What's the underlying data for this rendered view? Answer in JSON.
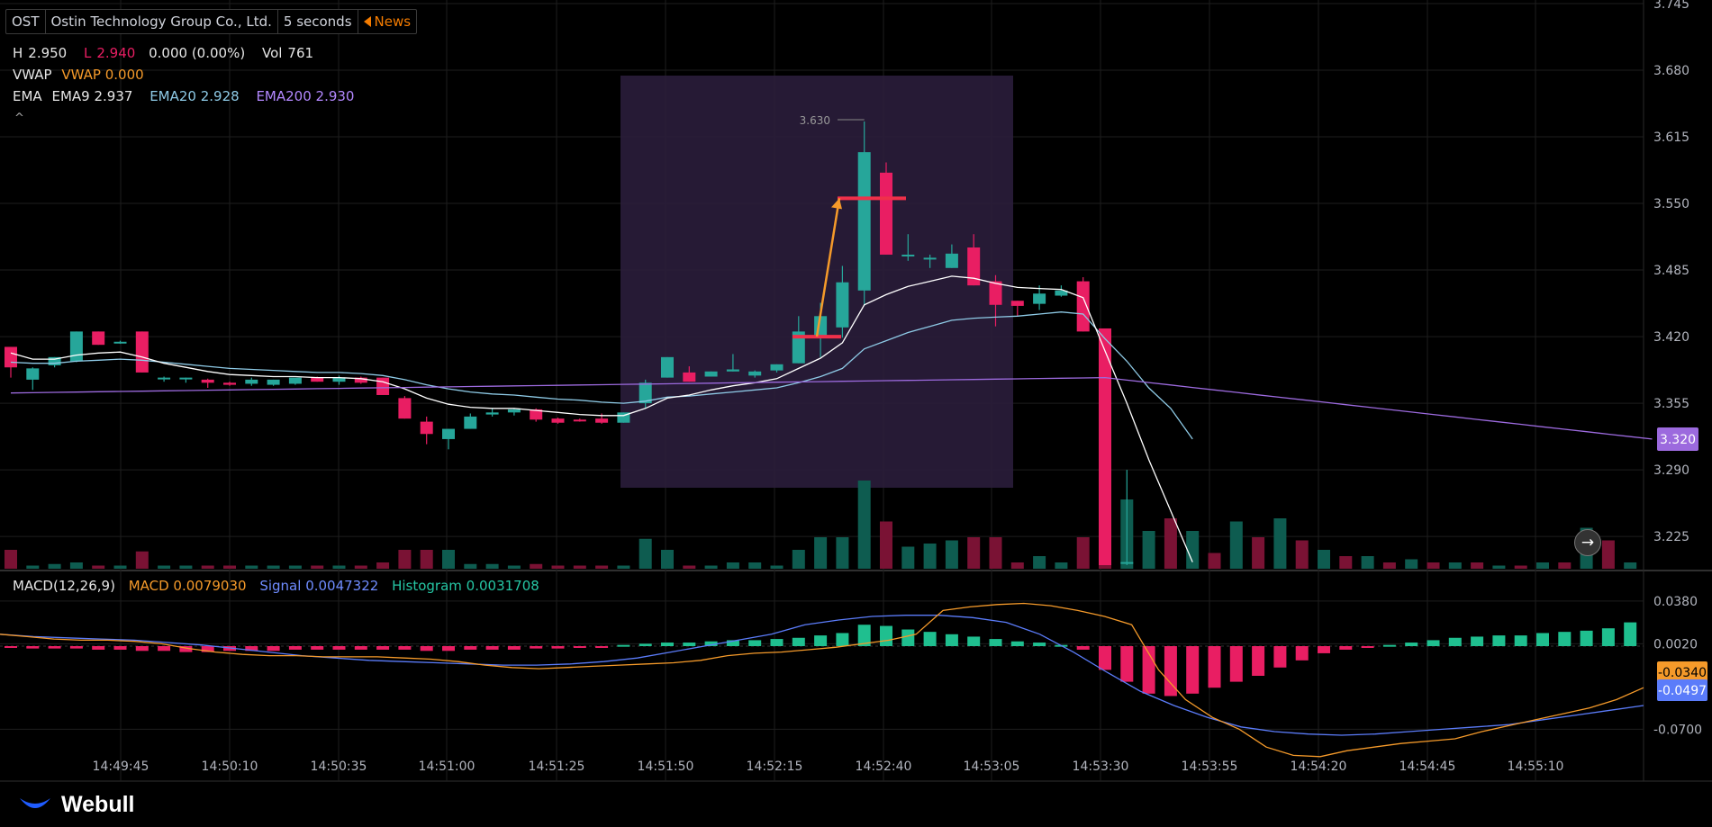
{
  "ticker": {
    "symbol": "OST",
    "name": "Ostin Technology Group Co., Ltd.",
    "interval": "5 seconds",
    "news_label": "News"
  },
  "ohlc": {
    "h_label": "H",
    "h_value": "2.950",
    "l_label": "L",
    "l_value": "2.940",
    "change": "0.000 (0.00%)",
    "vol_label": "Vol",
    "vol_value": "761"
  },
  "vwap": {
    "label": "VWAP",
    "value_text": "VWAP 0.000"
  },
  "ema": {
    "label": "EMA",
    "ema9_text": "EMA9 2.937",
    "ema20_text": "EMA20 2.928",
    "ema200_text": "EMA200 2.930"
  },
  "collapse_glyph": "^",
  "macd_header": {
    "label": "MACD(12,26,9)",
    "macd_text": "MACD 0.0079030",
    "signal_text": "Signal 0.0047322",
    "hist_text": "Histogram 0.0031708"
  },
  "brand": "Webull",
  "colors": {
    "up": "#26a69a",
    "down": "#e91e63",
    "ema9": "#ffffff",
    "ema20": "#8ecae6",
    "ema200": "#9c6ade",
    "macd": "#f59a2a",
    "signal": "#5b7cfa",
    "box": "#2a1d3b",
    "arrow": "#f59a2a",
    "hline": "#f0304a"
  },
  "chart_data": [
    {
      "type": "candlestick",
      "y_ticks": [
        "3.745",
        "3.680",
        "3.615",
        "3.550",
        "3.485",
        "3.420",
        "3.355",
        "3.290",
        "3.225"
      ],
      "ylim": [
        3.197,
        3.745
      ],
      "x_ticks": [
        "14:49:45",
        "14:50:10",
        "14:50:35",
        "14:51:00",
        "14:51:25",
        "14:51:50",
        "14:52:15",
        "14:52:40",
        "14:53:05",
        "14:53:30",
        "14:53:55",
        "14:54:20",
        "14:54:45",
        "14:55:10"
      ],
      "candles": [
        [
          3.41,
          3.41,
          3.38,
          3.39
        ],
        [
          3.378,
          3.39,
          3.368,
          3.389
        ],
        [
          3.392,
          3.4,
          3.39,
          3.4
        ],
        [
          3.396,
          3.425,
          3.395,
          3.425
        ],
        [
          3.425,
          3.425,
          3.412,
          3.412
        ],
        [
          3.414,
          3.416,
          3.413,
          3.415
        ],
        [
          3.425,
          3.425,
          3.385,
          3.385
        ],
        [
          3.38,
          3.381,
          3.376,
          3.38
        ],
        [
          3.38,
          3.38,
          3.375,
          3.38
        ],
        [
          3.378,
          3.379,
          3.37,
          3.375
        ],
        [
          3.375,
          3.376,
          3.372,
          3.373
        ],
        [
          3.374,
          3.38,
          3.372,
          3.378
        ],
        [
          3.373,
          3.378,
          3.372,
          3.378
        ],
        [
          3.374,
          3.378,
          3.373,
          3.38
        ],
        [
          3.38,
          3.381,
          3.376,
          3.376
        ],
        [
          3.376,
          3.382,
          3.373,
          3.38
        ],
        [
          3.38,
          3.381,
          3.374,
          3.375
        ],
        [
          3.38,
          3.38,
          3.363,
          3.363
        ],
        [
          3.36,
          3.362,
          3.34,
          3.34
        ],
        [
          3.337,
          3.342,
          3.315,
          3.325
        ],
        [
          3.32,
          3.33,
          3.31,
          3.33
        ],
        [
          3.33,
          3.345,
          3.33,
          3.342
        ],
        [
          3.344,
          3.35,
          3.342,
          3.346
        ],
        [
          3.346,
          3.35,
          3.343,
          3.349
        ],
        [
          3.349,
          3.35,
          3.337,
          3.339
        ],
        [
          3.34,
          3.341,
          3.335,
          3.336
        ],
        [
          3.339,
          3.34,
          3.337,
          3.338
        ],
        [
          3.34,
          3.345,
          3.335,
          3.336
        ],
        [
          3.336,
          3.346,
          3.336,
          3.346
        ],
        [
          3.355,
          3.378,
          3.35,
          3.375
        ],
        [
          3.38,
          3.4,
          3.38,
          3.4
        ],
        [
          3.385,
          3.391,
          3.376,
          3.376
        ],
        [
          3.381,
          3.386,
          3.381,
          3.386
        ],
        [
          3.386,
          3.403,
          3.386,
          3.388
        ],
        [
          3.382,
          3.387,
          3.38,
          3.386
        ],
        [
          3.387,
          3.393,
          3.385,
          3.393
        ],
        [
          3.394,
          3.44,
          3.394,
          3.425
        ],
        [
          3.42,
          3.453,
          3.4,
          3.44
        ],
        [
          3.429,
          3.489,
          3.419,
          3.473
        ],
        [
          3.465,
          3.63,
          3.45,
          3.6
        ],
        [
          3.58,
          3.59,
          3.5,
          3.5
        ],
        [
          3.5,
          3.52,
          3.494,
          3.5
        ],
        [
          3.497,
          3.5,
          3.487,
          3.497
        ],
        [
          3.487,
          3.51,
          3.487,
          3.501
        ],
        [
          3.507,
          3.52,
          3.47,
          3.47
        ],
        [
          3.474,
          3.48,
          3.43,
          3.451
        ],
        [
          3.455,
          3.455,
          3.44,
          3.45
        ],
        [
          3.452,
          3.47,
          3.446,
          3.462
        ],
        [
          3.46,
          3.47,
          3.459,
          3.465
        ],
        [
          3.474,
          3.478,
          3.425,
          3.425
        ],
        [
          3.428,
          3.428,
          3.197,
          3.197
        ],
        [
          3.2,
          3.29,
          3.197,
          3.2
        ]
      ],
      "volumes": [
        0.6,
        0.1,
        0.15,
        0.2,
        0.1,
        0.1,
        0.55,
        0.1,
        0.1,
        0.1,
        0.1,
        0.1,
        0.1,
        0.1,
        0.1,
        0.1,
        0.1,
        0.2,
        0.6,
        0.6,
        0.6,
        0.15,
        0.15,
        0.1,
        0.15,
        0.1,
        0.1,
        0.1,
        0.1,
        0.95,
        0.6,
        0.1,
        0.1,
        0.2,
        0.2,
        0.1,
        0.6,
        1.0,
        1.0,
        2.8,
        1.5,
        0.7,
        0.8,
        0.9,
        1.0,
        1.0,
        0.2,
        0.4,
        0.2,
        1.0,
        2.0,
        2.2,
        1.2,
        1.6,
        1.2,
        0.5,
        1.5,
        1.0,
        1.6,
        0.9,
        0.6,
        0.4,
        0.4,
        0.2,
        0.3,
        0.2,
        0.2,
        0.2,
        0.1,
        0.1,
        0.2,
        0.2,
        1.3,
        0.9,
        0.2
      ],
      "ema9": [
        3.404,
        3.398,
        3.398,
        3.402,
        3.404,
        3.405,
        3.4,
        3.394,
        3.39,
        3.386,
        3.383,
        3.382,
        3.381,
        3.381,
        3.38,
        3.38,
        3.379,
        3.376,
        3.369,
        3.36,
        3.354,
        3.351,
        3.35,
        3.35,
        3.348,
        3.346,
        3.344,
        3.343,
        3.343,
        3.35,
        3.36,
        3.363,
        3.368,
        3.372,
        3.375,
        3.379,
        3.389,
        3.399,
        3.414,
        3.451,
        3.461,
        3.469,
        3.474,
        3.479,
        3.477,
        3.472,
        3.468,
        3.467,
        3.466,
        3.458,
        3.406,
        3.355,
        3.3,
        3.25,
        3.2
      ],
      "ema20": [
        3.395,
        3.394,
        3.394,
        3.396,
        3.397,
        3.398,
        3.397,
        3.395,
        3.393,
        3.391,
        3.389,
        3.388,
        3.387,
        3.386,
        3.385,
        3.385,
        3.384,
        3.382,
        3.378,
        3.373,
        3.369,
        3.366,
        3.364,
        3.363,
        3.361,
        3.359,
        3.358,
        3.356,
        3.355,
        3.357,
        3.361,
        3.362,
        3.364,
        3.366,
        3.368,
        3.37,
        3.375,
        3.381,
        3.389,
        3.408,
        3.416,
        3.424,
        3.43,
        3.436,
        3.438,
        3.439,
        3.44,
        3.442,
        3.444,
        3.442,
        3.418,
        3.396,
        3.37,
        3.35,
        3.32
      ],
      "ema200_start": 3.365,
      "ema200_peak": 3.38,
      "ema200_end": 3.32,
      "highlight_label": "3.630",
      "last_price_label": "3.320",
      "annotations": [
        {
          "type": "arrow",
          "from": 3.42,
          "to": 3.555
        },
        {
          "type": "hline",
          "value": 3.42
        },
        {
          "type": "hline",
          "value": 3.555
        }
      ]
    },
    {
      "type": "macd",
      "y_ticks": [
        "0.0380",
        "0.0020",
        "-0.0700"
      ],
      "ylim": [
        -0.1,
        0.05
      ],
      "macd_label": "-0.0340",
      "signal_label": "-0.0497",
      "hist": [
        -0.001,
        -0.002,
        -0.002,
        -0.002,
        -0.003,
        -0.003,
        -0.004,
        -0.004,
        -0.005,
        -0.005,
        -0.004,
        -0.004,
        -0.004,
        -0.003,
        -0.003,
        -0.003,
        -0.003,
        -0.003,
        -0.003,
        -0.004,
        -0.004,
        -0.003,
        -0.003,
        -0.003,
        -0.002,
        -0.002,
        -0.001,
        -0.001,
        0.001,
        0.002,
        0.003,
        0.003,
        0.004,
        0.005,
        0.005,
        0.006,
        0.007,
        0.009,
        0.011,
        0.018,
        0.017,
        0.014,
        0.012,
        0.01,
        0.008,
        0.006,
        0.004,
        0.003,
        0.001,
        -0.003,
        -0.02,
        -0.03,
        -0.04,
        -0.042,
        -0.04,
        -0.035,
        -0.03,
        -0.025,
        -0.018,
        -0.012,
        -0.006,
        -0.003,
        -0.001,
        0.001,
        0.003,
        0.005,
        0.007,
        0.008,
        0.009,
        0.009,
        0.011,
        0.012,
        0.013,
        0.015,
        0.02
      ],
      "macd": [
        0.01,
        0.008,
        0.006,
        0.005,
        0.005,
        0.004,
        0.002,
        -0.002,
        -0.005,
        -0.007,
        -0.008,
        -0.008,
        -0.009,
        -0.009,
        -0.009,
        -0.01,
        -0.011,
        -0.013,
        -0.016,
        -0.018,
        -0.019,
        -0.018,
        -0.017,
        -0.016,
        -0.015,
        -0.014,
        -0.012,
        -0.008,
        -0.006,
        -0.005,
        -0.003,
        -0.001,
        0.002,
        0.005,
        0.01,
        0.03,
        0.033,
        0.035,
        0.036,
        0.034,
        0.03,
        0.025,
        0.018,
        -0.02,
        -0.045,
        -0.06,
        -0.07,
        -0.085,
        -0.092,
        -0.093,
        -0.088,
        -0.085,
        -0.082,
        -0.08,
        -0.078,
        -0.072,
        -0.067,
        -0.062,
        -0.057,
        -0.052,
        -0.045,
        -0.035
      ],
      "signal": [
        0.01,
        0.008,
        0.007,
        0.006,
        0.005,
        0.003,
        0.001,
        -0.002,
        -0.005,
        -0.008,
        -0.01,
        -0.012,
        -0.013,
        -0.014,
        -0.015,
        -0.016,
        -0.016,
        -0.015,
        -0.013,
        -0.01,
        -0.005,
        0.0,
        0.005,
        0.01,
        0.018,
        0.022,
        0.025,
        0.026,
        0.026,
        0.024,
        0.02,
        0.01,
        -0.005,
        -0.022,
        -0.038,
        -0.05,
        -0.06,
        -0.068,
        -0.072,
        -0.074,
        -0.075,
        -0.074,
        -0.072,
        -0.07,
        -0.068,
        -0.066,
        -0.062,
        -0.058,
        -0.054,
        -0.05
      ]
    }
  ]
}
